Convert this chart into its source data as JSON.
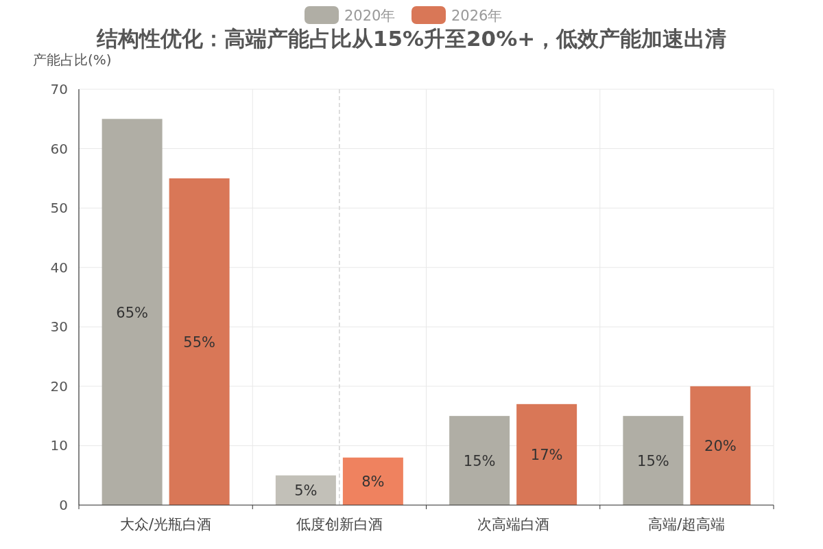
{
  "chart_data": {
    "type": "bar",
    "title": "结构性优化：高端产能占比从15%升至20%+，低效产能加速出清",
    "ylabel": "产能占比(%)",
    "categories": [
      "大众/光瓶白酒",
      "低度创新白酒",
      "次高端白酒",
      "高端/超高端"
    ],
    "series": [
      {
        "name": "2020年",
        "color": "#b0aea5",
        "colors": [
          "#b0aea5",
          "#c2c0b8",
          "#b0aea5",
          "#b0aea5"
        ],
        "values": [
          65,
          5,
          15,
          15
        ],
        "value_labels": [
          "65%",
          "5%",
          "15%",
          "15%"
        ]
      },
      {
        "name": "2026年",
        "color": "#d97757",
        "colors": [
          "#d97757",
          "#ef825f",
          "#d97757",
          "#d97757"
        ],
        "values": [
          55,
          8,
          17,
          20
        ],
        "value_labels": [
          "55%",
          "8%",
          "17%",
          "20%"
        ]
      }
    ],
    "ylim": [
      0,
      70
    ],
    "yticks": [
      0,
      10,
      20,
      30,
      40,
      50,
      60,
      70
    ],
    "grid": true,
    "legend": "top",
    "ref_lines": [
      {
        "axis": "x",
        "value": "低度创新白酒",
        "color": "#cccccc",
        "line_style": "dashed"
      }
    ]
  }
}
